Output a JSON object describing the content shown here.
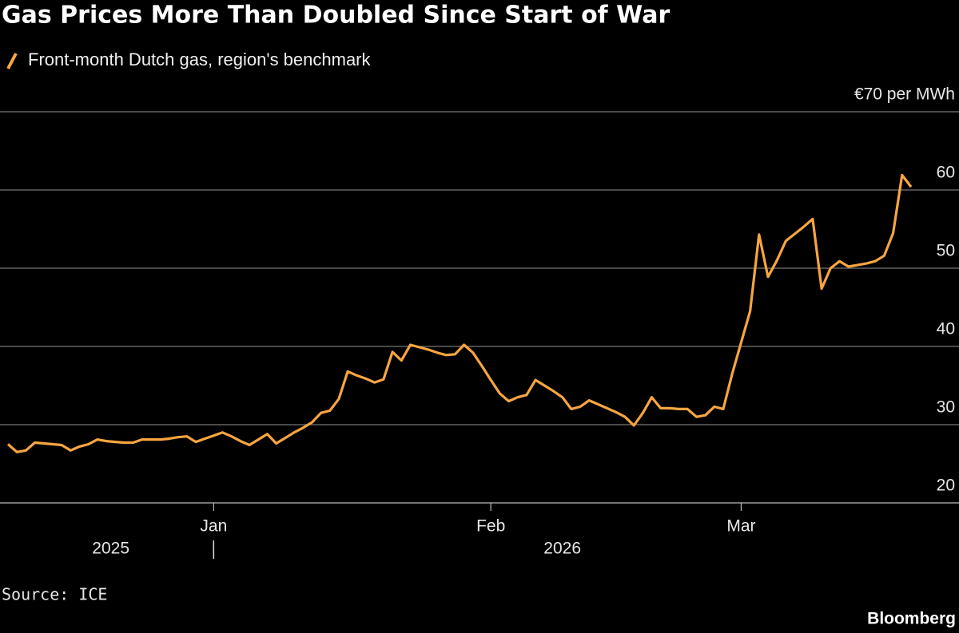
{
  "chart_data": {
    "type": "line",
    "title": "Gas Prices More Than Doubled Since Start of War",
    "series": [
      {
        "name": "Front-month Dutch gas, region's benchmark",
        "color": "#f7a541",
        "values": [
          27.5,
          26.5,
          26.7,
          27.7,
          27.6,
          27.5,
          27.4,
          26.7,
          27.2,
          27.5,
          28.1,
          27.9,
          27.8,
          27.7,
          27.7,
          28.1,
          28.1,
          28.1,
          28.2,
          28.4,
          28.5,
          27.8,
          28.2,
          28.6,
          29.0,
          28.5,
          27.9,
          27.4,
          28.1,
          28.8,
          27.6,
          28.3,
          29.0,
          29.6,
          30.3,
          31.5,
          31.8,
          33.3,
          36.8,
          36.3,
          35.9,
          35.4,
          35.8,
          39.3,
          38.2,
          40.2,
          39.9,
          39.6,
          39.2,
          38.9,
          39.0,
          40.2,
          39.2,
          37.5,
          35.7,
          34.0,
          33.0,
          33.5,
          33.8,
          35.7,
          35.0,
          34.3,
          33.5,
          32.0,
          32.3,
          33.1,
          32.6,
          32.1,
          31.6,
          31.0,
          29.9,
          31.5,
          33.5,
          32.1,
          32.1,
          32.0,
          32.0,
          31.0,
          31.2,
          32.3,
          32.0,
          36.5,
          40.5,
          44.5,
          54.3,
          48.9,
          51.0,
          53.5,
          54.4,
          55.3,
          56.3,
          47.4,
          50.0,
          50.9,
          50.2,
          50.4,
          50.6,
          50.9,
          51.6,
          54.5,
          61.9,
          60.4
        ]
      }
    ],
    "categories": [
      null,
      null,
      null,
      null,
      null,
      null,
      null,
      null,
      null,
      null,
      null,
      null,
      null,
      null,
      null,
      null,
      null,
      null,
      null,
      null,
      null,
      null,
      null,
      "Jan",
      null,
      null,
      null,
      null,
      null,
      null,
      null,
      null,
      null,
      null,
      null,
      null,
      null,
      null,
      null,
      null,
      null,
      null,
      null,
      null,
      null,
      null,
      null,
      null,
      null,
      null,
      null,
      null,
      null,
      null,
      "Feb",
      null,
      null,
      null,
      null,
      null,
      null,
      null,
      null,
      null,
      null,
      null,
      null,
      null,
      null,
      null,
      null,
      null,
      null,
      null,
      null,
      null,
      null,
      null,
      null,
      null,
      null,
      null,
      "Mar",
      null,
      null,
      null,
      null,
      null,
      null,
      null,
      null,
      null,
      null,
      null,
      null,
      null,
      null,
      null,
      null,
      null,
      null,
      null
    ],
    "years": [
      "2025",
      "2026"
    ],
    "ylim": [
      20,
      70
    ],
    "yticks": [
      20,
      30,
      40,
      50,
      60,
      {
        "value": 70,
        "label": "€70 per MWh"
      }
    ],
    "grid": true,
    "source": "Source: ICE",
    "brand": "Bloomberg"
  }
}
